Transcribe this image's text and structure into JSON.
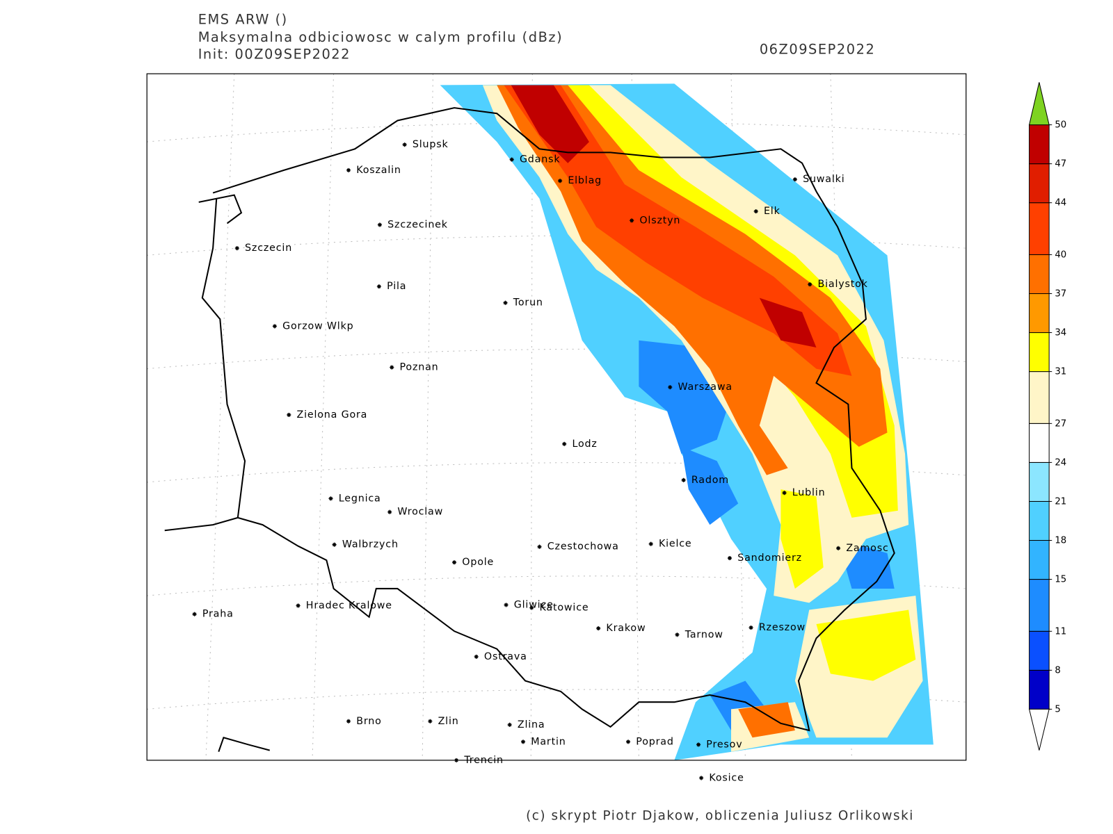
{
  "header": {
    "model": "EMS ARW ()",
    "field": "Maksymalna odbiciowosc w calym profilu (dBz)",
    "init": "Init: 00Z09SEP2022",
    "valid": "06Z09SEP2022"
  },
  "cities": [
    "Slupsk",
    "Koszalin",
    "Szczecinek",
    "Szczecin",
    "Pila",
    "Torun",
    "Gorzow Wlkp",
    "Poznan",
    "Zielona Gora",
    "Lodz",
    "Legnica",
    "Wroclaw",
    "Walbrzych",
    "Opole",
    "Czestochowa",
    "Kielce",
    "Sandomierz",
    "Praha",
    "Hradec Kralowe",
    "Gliwice",
    "Katowice",
    "Krakow",
    "Tarnow",
    "Rzeszow",
    "Ostrava",
    "Brno",
    "Zlin",
    "Zlina",
    "Martin",
    "Poprad",
    "Presov",
    "Trencin",
    "Kosice",
    "Gdansk",
    "Elblag",
    "Olsztyn",
    "Elk",
    "Suwalki",
    "Bialystok",
    "Warszawa",
    "Radom",
    "Lublin",
    "Zamosc"
  ],
  "colorbar": {
    "levels": [
      5,
      8,
      11,
      15,
      18,
      21,
      24,
      27,
      31,
      34,
      37,
      40,
      44,
      47,
      50
    ],
    "colors": [
      "#0000c8",
      "#0a50ff",
      "#1e8cff",
      "#32b4ff",
      "#50d0ff",
      "#8ce6ff",
      "#ffffff",
      "#fff5c8",
      "#ffff00",
      "#ff9900",
      "#ff7000",
      "#ff4000",
      "#e01e00",
      "#c00000"
    ],
    "below_color": "#ffffff",
    "above_color": "#7ed321"
  },
  "credit": "(c) skrypt Piotr Djakow, obliczenia Juliusz Orlikowski"
}
